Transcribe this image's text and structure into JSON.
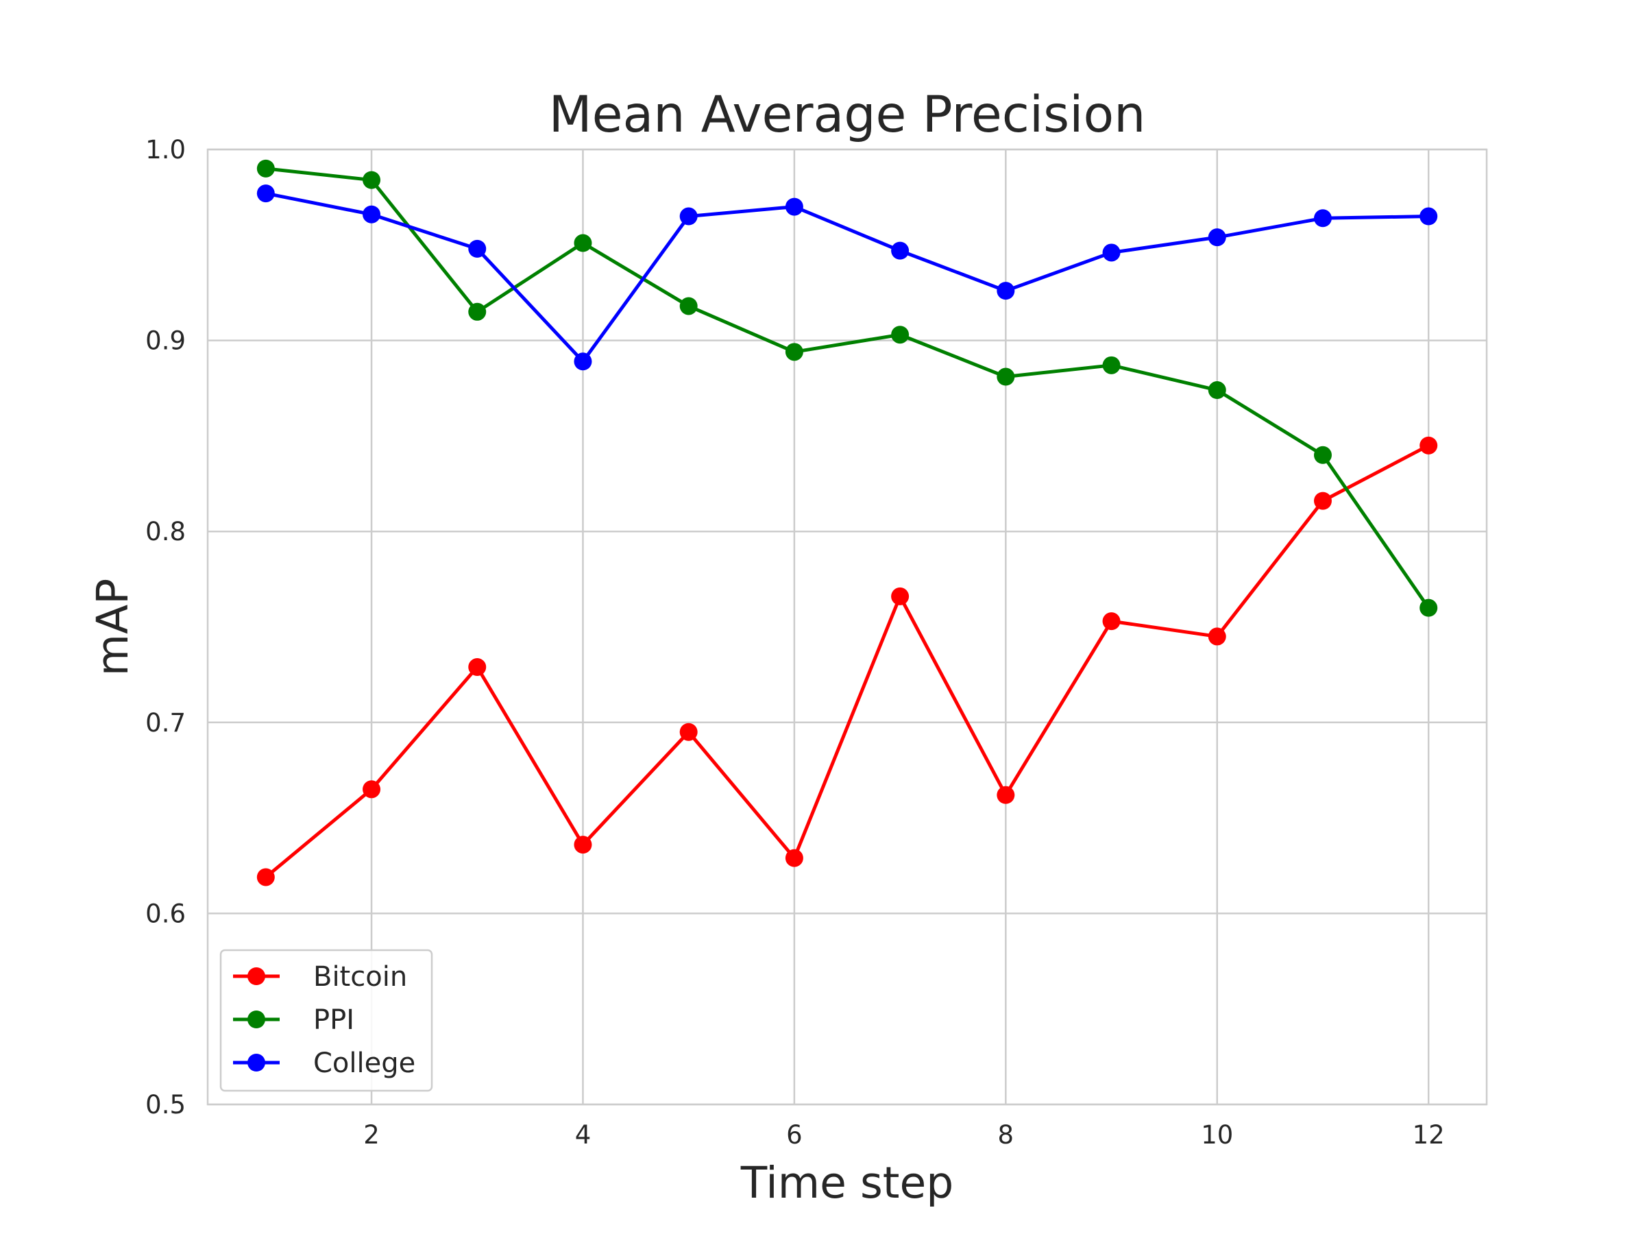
{
  "chart_data": {
    "type": "line",
    "title": "Mean Average Precision",
    "xlabel": "Time step",
    "ylabel": "mAP",
    "xlim": [
      0.45,
      12.55
    ],
    "ylim": [
      0.5,
      1.0
    ],
    "xticks": [
      2,
      4,
      6,
      8,
      10,
      12
    ],
    "xtick_labels": [
      "2",
      "4",
      "6",
      "8",
      "10",
      "12"
    ],
    "yticks": [
      0.5,
      0.6,
      0.7,
      0.8,
      0.9,
      1.0
    ],
    "ytick_labels": [
      "0.5",
      "0.6",
      "0.7",
      "0.8",
      "0.9",
      "1.0"
    ],
    "grid": true,
    "legend_position": "lower-left",
    "x": [
      1,
      2,
      3,
      4,
      5,
      6,
      7,
      8,
      9,
      10,
      11,
      12
    ],
    "series": [
      {
        "name": "Bitcoin",
        "color": "#ff0000",
        "values": [
          0.619,
          0.665,
          0.729,
          0.636,
          0.695,
          0.629,
          0.766,
          0.662,
          0.753,
          0.745,
          0.816,
          0.845
        ]
      },
      {
        "name": "PPI",
        "color": "#008000",
        "values": [
          0.99,
          0.984,
          0.915,
          0.951,
          0.918,
          0.894,
          0.903,
          0.881,
          0.887,
          0.874,
          0.84,
          0.76
        ]
      },
      {
        "name": "College",
        "color": "#0000ff",
        "values": [
          0.977,
          0.966,
          0.948,
          0.889,
          0.965,
          0.97,
          0.947,
          0.926,
          0.946,
          0.954,
          0.964,
          0.965
        ]
      }
    ]
  }
}
